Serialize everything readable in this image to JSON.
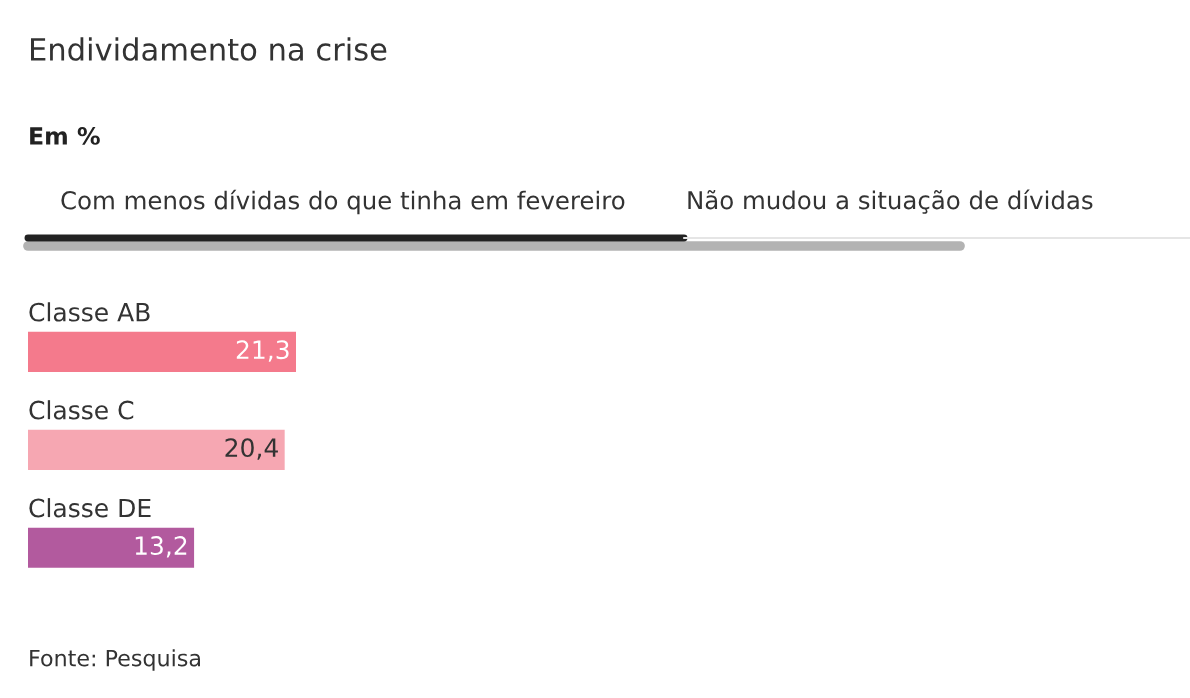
{
  "chart_data": {
    "type": "bar",
    "orientation": "horizontal",
    "title": "Endividamento na crise",
    "subtitle": "Em %",
    "annotations": [
      "Com menos dívidas do que tinha em fevereiro",
      "Não mudou a situação de dívidas",
      "Fonte: Pesquisa"
    ],
    "categories": [
      "Classe AB",
      "Classe C",
      "Classe DE"
    ],
    "values": [
      21.3,
      20.4,
      13.2
    ],
    "colors": [
      "#f47a8c",
      "#f6a7b2",
      "#b25a9e"
    ],
    "value_labels": [
      "21,3",
      "20,4",
      "13,2"
    ],
    "tick_labels": false
  }
}
